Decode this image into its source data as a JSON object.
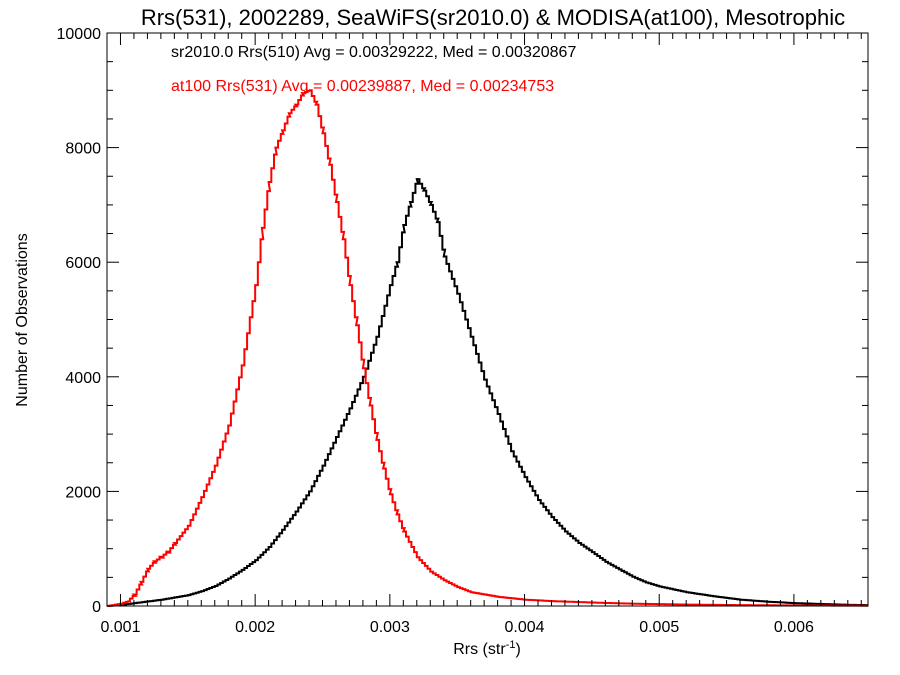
{
  "chart_data": {
    "type": "line",
    "title": "Rrs(531), 2002289, SeaWiFS(sr2010.0) & MODISA(at100), Mesotrophic",
    "xlabel": "Rrs (str",
    "xlabel_sup": "-1",
    "xlabel_close": ")",
    "ylabel": "Number of Observations",
    "xlim": [
      0.0009,
      0.00655
    ],
    "ylim": [
      0,
      10000
    ],
    "x_ticks": [
      0.001,
      0.002,
      0.003,
      0.004,
      0.005,
      0.006
    ],
    "x_tick_labels": [
      "0.001",
      "0.002",
      "0.003",
      "0.004",
      "0.005",
      "0.006"
    ],
    "y_ticks": [
      0,
      2000,
      4000,
      6000,
      8000,
      10000
    ],
    "y_tick_labels": [
      "0",
      "2000",
      "4000",
      "6000",
      "8000",
      "10000"
    ],
    "legend_position": "top-left",
    "series": [
      {
        "legend": "sr2010.0 Rrs(510) Avg = 0.00329222, Med = 0.00320867",
        "color": "#000000",
        "points": [
          [
            0.0009,
            0
          ],
          [
            0.001,
            20
          ],
          [
            0.0011,
            50
          ],
          [
            0.0012,
            80
          ],
          [
            0.0013,
            110
          ],
          [
            0.0014,
            150
          ],
          [
            0.0015,
            190
          ],
          [
            0.0016,
            260
          ],
          [
            0.0017,
            350
          ],
          [
            0.0018,
            480
          ],
          [
            0.0019,
            630
          ],
          [
            0.002,
            800
          ],
          [
            0.0021,
            1030
          ],
          [
            0.0022,
            1330
          ],
          [
            0.0023,
            1650
          ],
          [
            0.0024,
            2000
          ],
          [
            0.0025,
            2450
          ],
          [
            0.0026,
            2950
          ],
          [
            0.0027,
            3450
          ],
          [
            0.0028,
            4000
          ],
          [
            0.0029,
            4700
          ],
          [
            0.003,
            5600
          ],
          [
            0.00305,
            6000
          ],
          [
            0.0031,
            6650
          ],
          [
            0.00315,
            7050
          ],
          [
            0.0032,
            7450
          ],
          [
            0.00325,
            7250
          ],
          [
            0.0033,
            7000
          ],
          [
            0.00335,
            6700
          ],
          [
            0.0034,
            6100
          ],
          [
            0.0035,
            5450
          ],
          [
            0.0036,
            4700
          ],
          [
            0.0037,
            3950
          ],
          [
            0.0038,
            3350
          ],
          [
            0.0039,
            2700
          ],
          [
            0.004,
            2250
          ],
          [
            0.0041,
            1850
          ],
          [
            0.0042,
            1550
          ],
          [
            0.0043,
            1300
          ],
          [
            0.0044,
            1100
          ],
          [
            0.0045,
            940
          ],
          [
            0.0046,
            770
          ],
          [
            0.0047,
            640
          ],
          [
            0.0048,
            510
          ],
          [
            0.0049,
            410
          ],
          [
            0.005,
            340
          ],
          [
            0.0052,
            240
          ],
          [
            0.0054,
            170
          ],
          [
            0.0056,
            110
          ],
          [
            0.0058,
            75
          ],
          [
            0.006,
            50
          ],
          [
            0.0062,
            35
          ],
          [
            0.0064,
            20
          ],
          [
            0.00655,
            15
          ]
        ]
      },
      {
        "legend": "at100 Rrs(531) Avg = 0.00239887, Med = 0.00234753",
        "color": "#ff0000",
        "points": [
          [
            0.0009,
            0
          ],
          [
            0.001,
            40
          ],
          [
            0.00105,
            80
          ],
          [
            0.0011,
            200
          ],
          [
            0.00115,
            420
          ],
          [
            0.0012,
            650
          ],
          [
            0.00125,
            780
          ],
          [
            0.0013,
            860
          ],
          [
            0.00135,
            950
          ],
          [
            0.0014,
            1100
          ],
          [
            0.0015,
            1400
          ],
          [
            0.0016,
            1900
          ],
          [
            0.0017,
            2450
          ],
          [
            0.0018,
            3150
          ],
          [
            0.0019,
            4200
          ],
          [
            0.002,
            5600
          ],
          [
            0.00205,
            6600
          ],
          [
            0.0021,
            7400
          ],
          [
            0.00215,
            8000
          ],
          [
            0.0022,
            8300
          ],
          [
            0.00225,
            8600
          ],
          [
            0.0023,
            8750
          ],
          [
            0.00235,
            8950
          ],
          [
            0.0024,
            9000
          ],
          [
            0.00245,
            8750
          ],
          [
            0.0025,
            8250
          ],
          [
            0.00255,
            7700
          ],
          [
            0.0026,
            7050
          ],
          [
            0.00265,
            6400
          ],
          [
            0.0027,
            5600
          ],
          [
            0.00275,
            4900
          ],
          [
            0.0028,
            4150
          ],
          [
            0.00285,
            3500
          ],
          [
            0.0029,
            2900
          ],
          [
            0.00295,
            2400
          ],
          [
            0.003,
            1950
          ],
          [
            0.00305,
            1600
          ],
          [
            0.0031,
            1300
          ],
          [
            0.0032,
            850
          ],
          [
            0.0033,
            600
          ],
          [
            0.0034,
            450
          ],
          [
            0.0035,
            330
          ],
          [
            0.0036,
            240
          ],
          [
            0.0038,
            160
          ],
          [
            0.004,
            110
          ],
          [
            0.0042,
            85
          ],
          [
            0.0045,
            60
          ],
          [
            0.0048,
            40
          ],
          [
            0.0052,
            25
          ],
          [
            0.0056,
            15
          ],
          [
            0.006,
            10
          ],
          [
            0.00655,
            5
          ]
        ]
      }
    ]
  }
}
